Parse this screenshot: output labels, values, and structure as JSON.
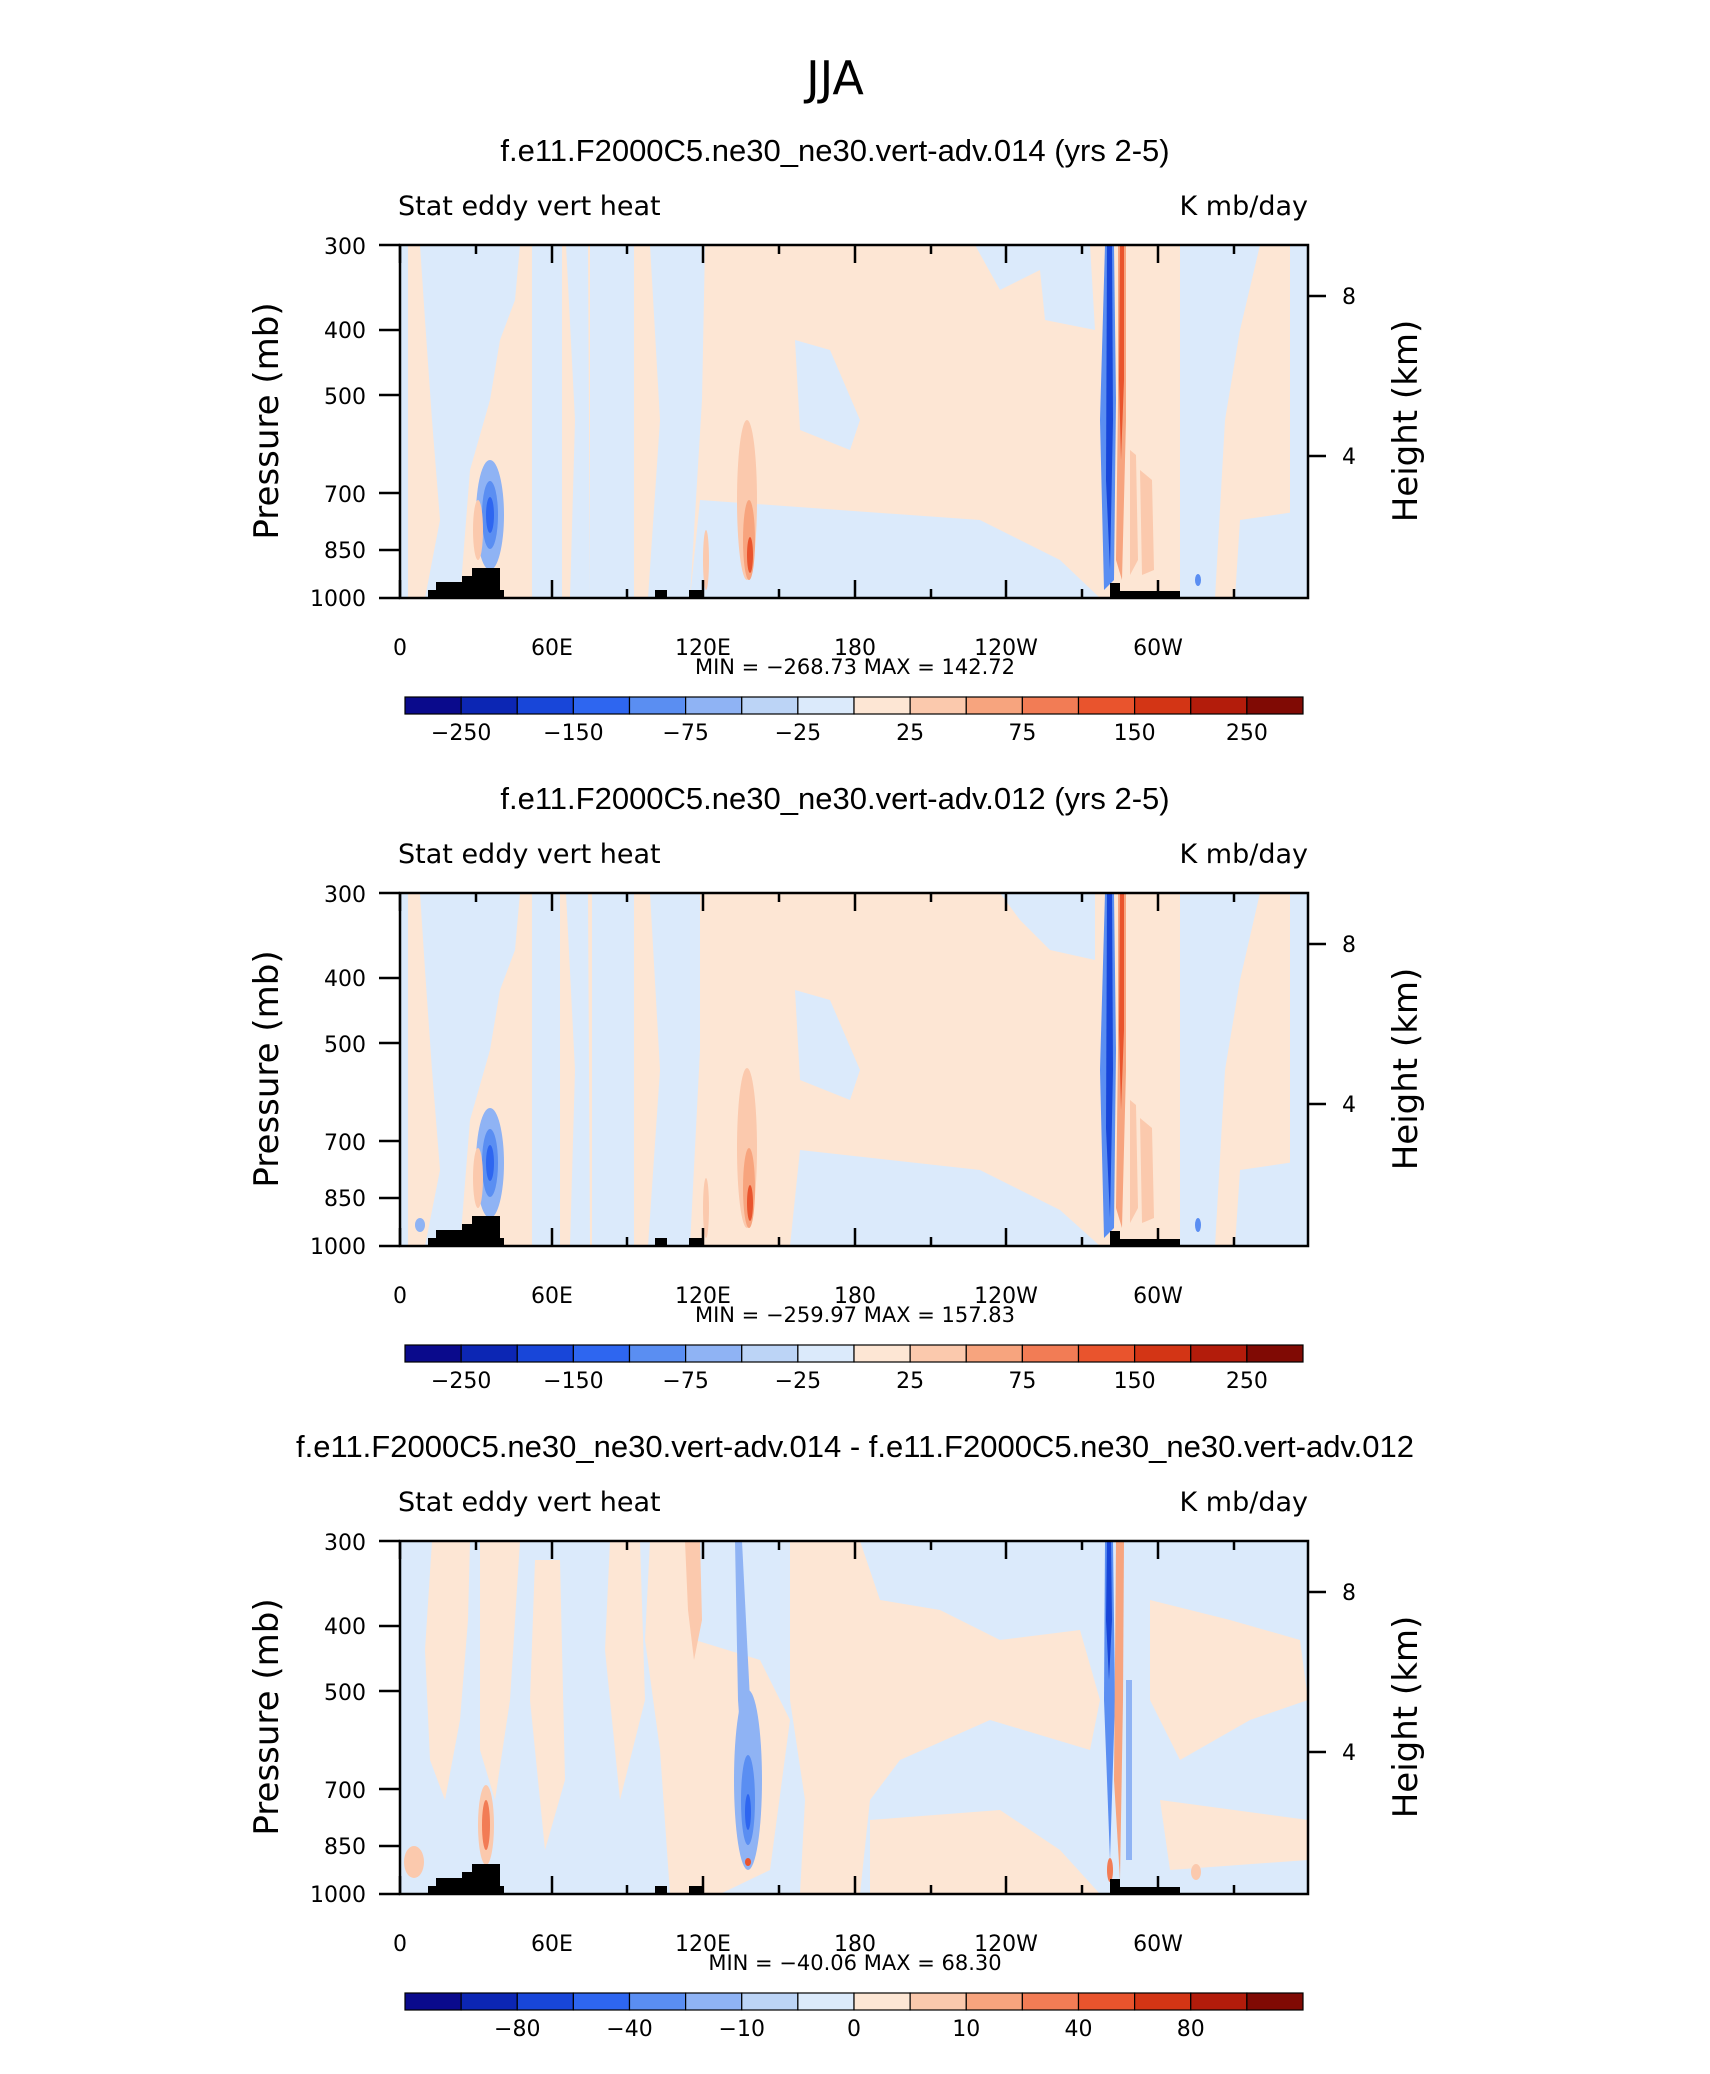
{
  "figure": {
    "title": "JJA"
  },
  "chart_data": [
    {
      "type": "heatmap",
      "title": "f.e11.F2000C5.ne30_ne30.vert-adv.014 (yrs 2-5)",
      "left_label": "Stat eddy vert heat",
      "right_label": "K mb/day",
      "ylabel": "Pressure (mb)",
      "ylabel_right": "Height (km)",
      "x_ticks": [
        "0",
        "60E",
        "120E",
        "180",
        "120W",
        "60W"
      ],
      "y_ticks": [
        "300",
        "400",
        "500",
        "700",
        "850",
        "1000"
      ],
      "y_ticks_right": [
        "8",
        "4"
      ],
      "stats": "MIN = −268.73   MAX = 142.72",
      "colorbar_labels": [
        "−250",
        "−150",
        "−75",
        "−25",
        "25",
        "75",
        "150",
        "250"
      ],
      "min": -268.73,
      "max": 142.72
    },
    {
      "type": "heatmap",
      "title": "f.e11.F2000C5.ne30_ne30.vert-adv.012 (yrs 2-5)",
      "left_label": "Stat eddy vert heat",
      "right_label": "K mb/day",
      "ylabel": "Pressure (mb)",
      "ylabel_right": "Height (km)",
      "x_ticks": [
        "0",
        "60E",
        "120E",
        "180",
        "120W",
        "60W"
      ],
      "y_ticks": [
        "300",
        "400",
        "500",
        "700",
        "850",
        "1000"
      ],
      "y_ticks_right": [
        "8",
        "4"
      ],
      "stats": "MIN = −259.97   MAX = 157.83",
      "colorbar_labels": [
        "−250",
        "−150",
        "−75",
        "−25",
        "25",
        "75",
        "150",
        "250"
      ],
      "min": -259.97,
      "max": 157.83
    },
    {
      "type": "heatmap",
      "title": "f.e11.F2000C5.ne30_ne30.vert-adv.014 - f.e11.F2000C5.ne30_ne30.vert-adv.012",
      "left_label": "Stat eddy vert heat",
      "right_label": "K mb/day",
      "ylabel": "Pressure (mb)",
      "ylabel_right": "Height (km)",
      "x_ticks": [
        "0",
        "60E",
        "120E",
        "180",
        "120W",
        "60W"
      ],
      "y_ticks": [
        "300",
        "400",
        "500",
        "700",
        "850",
        "1000"
      ],
      "y_ticks_right": [
        "8",
        "4"
      ],
      "stats": "MIN = −40.06   MAX =   68.30",
      "colorbar_labels": [
        "−80",
        "−40",
        "−10",
        "0",
        "10",
        "40",
        "80"
      ],
      "min": -40.06,
      "max": 68.3
    }
  ],
  "colors": {
    "colorbar": [
      "#0a0a8c",
      "#0c26b4",
      "#1846d9",
      "#2e66f0",
      "#5a8ef2",
      "#8fb3f4",
      "#bcd4f6",
      "#dbeafb",
      "#fde6d4",
      "#fbc9ad",
      "#f7a47e",
      "#f27c55",
      "#e9542d",
      "#d33515",
      "#b31c0b",
      "#800a04"
    ],
    "topography": "#000000"
  }
}
